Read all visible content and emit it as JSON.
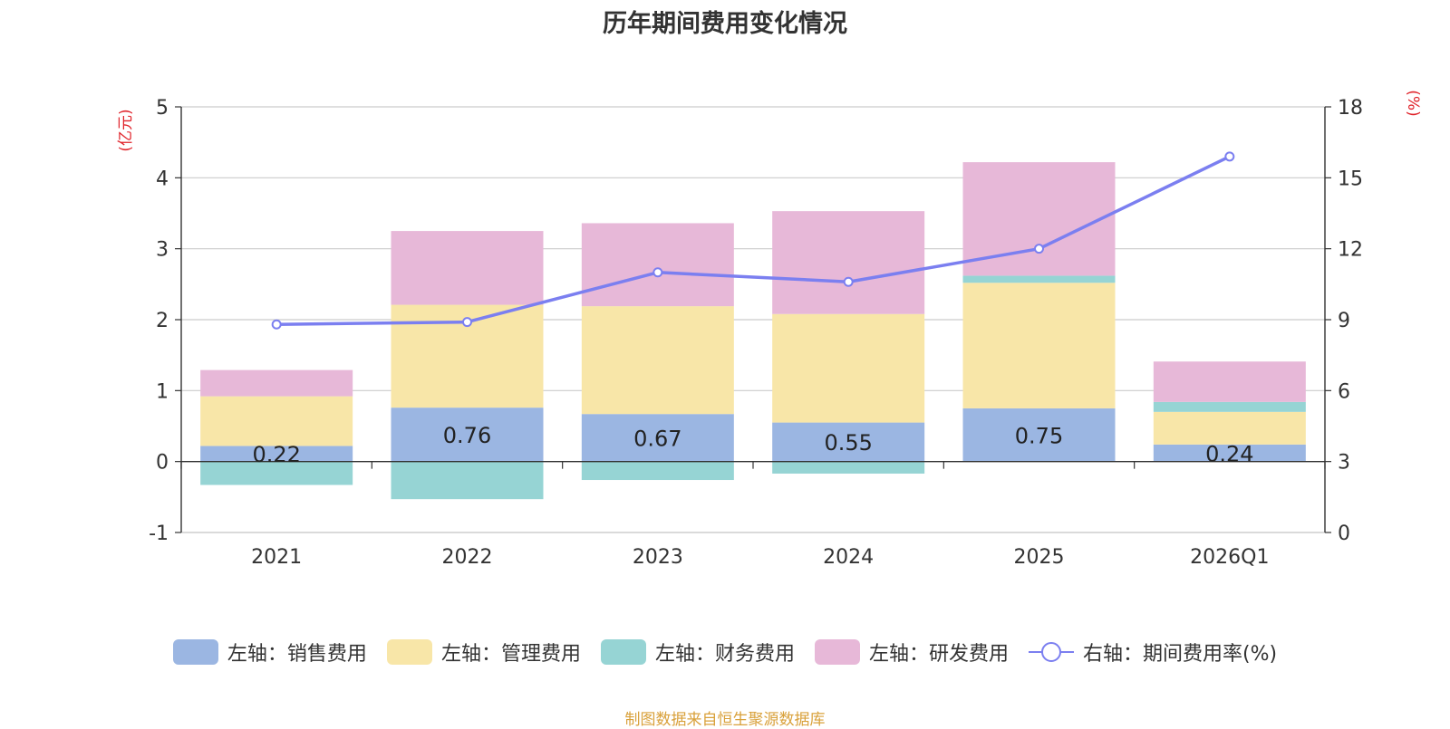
{
  "chart_data": {
    "type": "bar",
    "stacked": true,
    "title": "历年期间费用变化情况",
    "categories": [
      "2021",
      "2022",
      "2023",
      "2024",
      "2025",
      "2026Q1"
    ],
    "y_left": {
      "label": "(亿元)",
      "min": -1,
      "max": 5,
      "ticks": [
        "-1",
        "0",
        "1",
        "2",
        "3",
        "4",
        "5"
      ]
    },
    "y_right": {
      "label": "(%)",
      "min": 0,
      "max": 18,
      "ticks": [
        "0",
        "3",
        "6",
        "9",
        "12",
        "15",
        "18"
      ]
    },
    "series": [
      {
        "name": "左轴：销售费用",
        "type": "bar",
        "axis": "left",
        "color": "#9bb6e2",
        "values": [
          0.22,
          0.76,
          0.67,
          0.55,
          0.75,
          0.24
        ],
        "labels": [
          "0.22",
          "0.76",
          "0.67",
          "0.55",
          "0.75",
          "0.24"
        ]
      },
      {
        "name": "左轴：管理费用",
        "type": "bar",
        "axis": "left",
        "color": "#f8e6a8",
        "values": [
          0.7,
          1.45,
          1.52,
          1.53,
          1.77,
          0.46
        ]
      },
      {
        "name": "左轴：财务费用",
        "type": "bar",
        "axis": "left",
        "color": "#96d4d4",
        "values": [
          -0.33,
          -0.53,
          -0.26,
          -0.17,
          0.1,
          0.14
        ]
      },
      {
        "name": "左轴：研发费用",
        "type": "bar",
        "axis": "left",
        "color": "#e7b8d8",
        "values": [
          0.37,
          1.04,
          1.17,
          1.45,
          1.6,
          0.57
        ]
      },
      {
        "name": "右轴：期间费用率(%)",
        "type": "line",
        "axis": "right",
        "color": "#7b7ff0",
        "values": [
          8.8,
          8.9,
          11.0,
          10.6,
          12.0,
          15.9
        ]
      }
    ],
    "grid": true,
    "legend_position": "bottom"
  },
  "source": "制图数据来自恒生聚源数据库"
}
